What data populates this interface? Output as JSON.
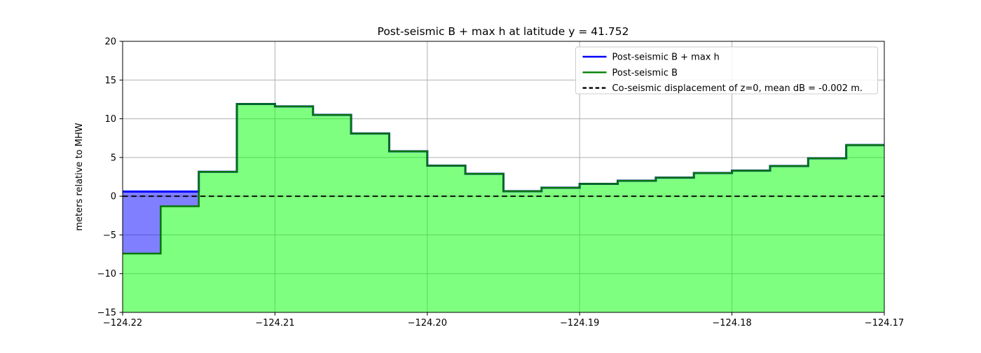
{
  "chart_data": {
    "type": "area",
    "title": "Post-seismic B + max h at latitude y = 41.752",
    "xlabel": "",
    "ylabel": "meters relative to MHW",
    "xlim": [
      -124.22,
      -124.17
    ],
    "ylim": [
      -15,
      20
    ],
    "grid": true,
    "grid_color": "#b0b0b0",
    "background_color": "#ffffff",
    "xticks": {
      "values": [
        -124.22,
        -124.21,
        -124.2,
        -124.19,
        -124.18,
        -124.17
      ],
      "labels": [
        "−124.22",
        "−124.21",
        "−124.20",
        "−124.19",
        "−124.18",
        "−124.17"
      ]
    },
    "yticks": {
      "values": [
        20,
        15,
        10,
        5,
        0,
        -5,
        -10,
        -15
      ],
      "labels": [
        "20",
        "15",
        "10",
        "5",
        "0",
        "−5",
        "−10",
        "−15"
      ]
    },
    "x_edges": [
      -124.22,
      -124.2175,
      -124.215,
      -124.2125,
      -124.21,
      -124.2075,
      -124.205,
      -124.2025,
      -124.2,
      -124.1975,
      -124.195,
      -124.1925,
      -124.19,
      -124.1875,
      -124.185,
      -124.1825,
      -124.18,
      -124.1775,
      -124.175,
      -124.1725,
      -124.17
    ],
    "series": [
      {
        "name": "Post-seismic B + max h",
        "kind": "step",
        "values": [
          0.6,
          0.6,
          3.15,
          11.9,
          11.6,
          10.5,
          8.1,
          5.8,
          3.95,
          2.9,
          0.65,
          1.1,
          1.6,
          2.0,
          2.4,
          3.0,
          3.3,
          3.9,
          4.9,
          6.6
        ],
        "line_color": "#0000ff",
        "fill_color": "rgba(0,0,255,0.5)",
        "fill_between": "Post-seismic B",
        "dashed": false
      },
      {
        "name": "Post-seismic B",
        "kind": "step",
        "values": [
          -7.4,
          -1.3,
          3.15,
          11.9,
          11.6,
          10.5,
          8.1,
          5.8,
          3.95,
          2.9,
          0.65,
          1.1,
          1.6,
          2.0,
          2.4,
          3.0,
          3.3,
          3.9,
          4.9,
          6.6
        ],
        "line_color": "#067506",
        "fill_color": "rgba(0,255,0,0.5)",
        "fill_to": -15,
        "dashed": false
      },
      {
        "name": "Co-seismic displacement of z=0, mean dB = -0.002 m.",
        "kind": "hline",
        "value": -0.002,
        "line_color": "#000000",
        "dashed": true
      }
    ],
    "legend": {
      "position": "upper right",
      "entries": [
        "Post-seismic B + max h",
        "Post-seismic B",
        "Co-seismic displacement of z=0, mean dB = -0.002 m."
      ],
      "swatch_colors": [
        "#0000ff",
        "#008000",
        "#000000"
      ],
      "swatch_dashed": [
        false,
        false,
        true
      ],
      "border_color": "#cccccc"
    }
  }
}
